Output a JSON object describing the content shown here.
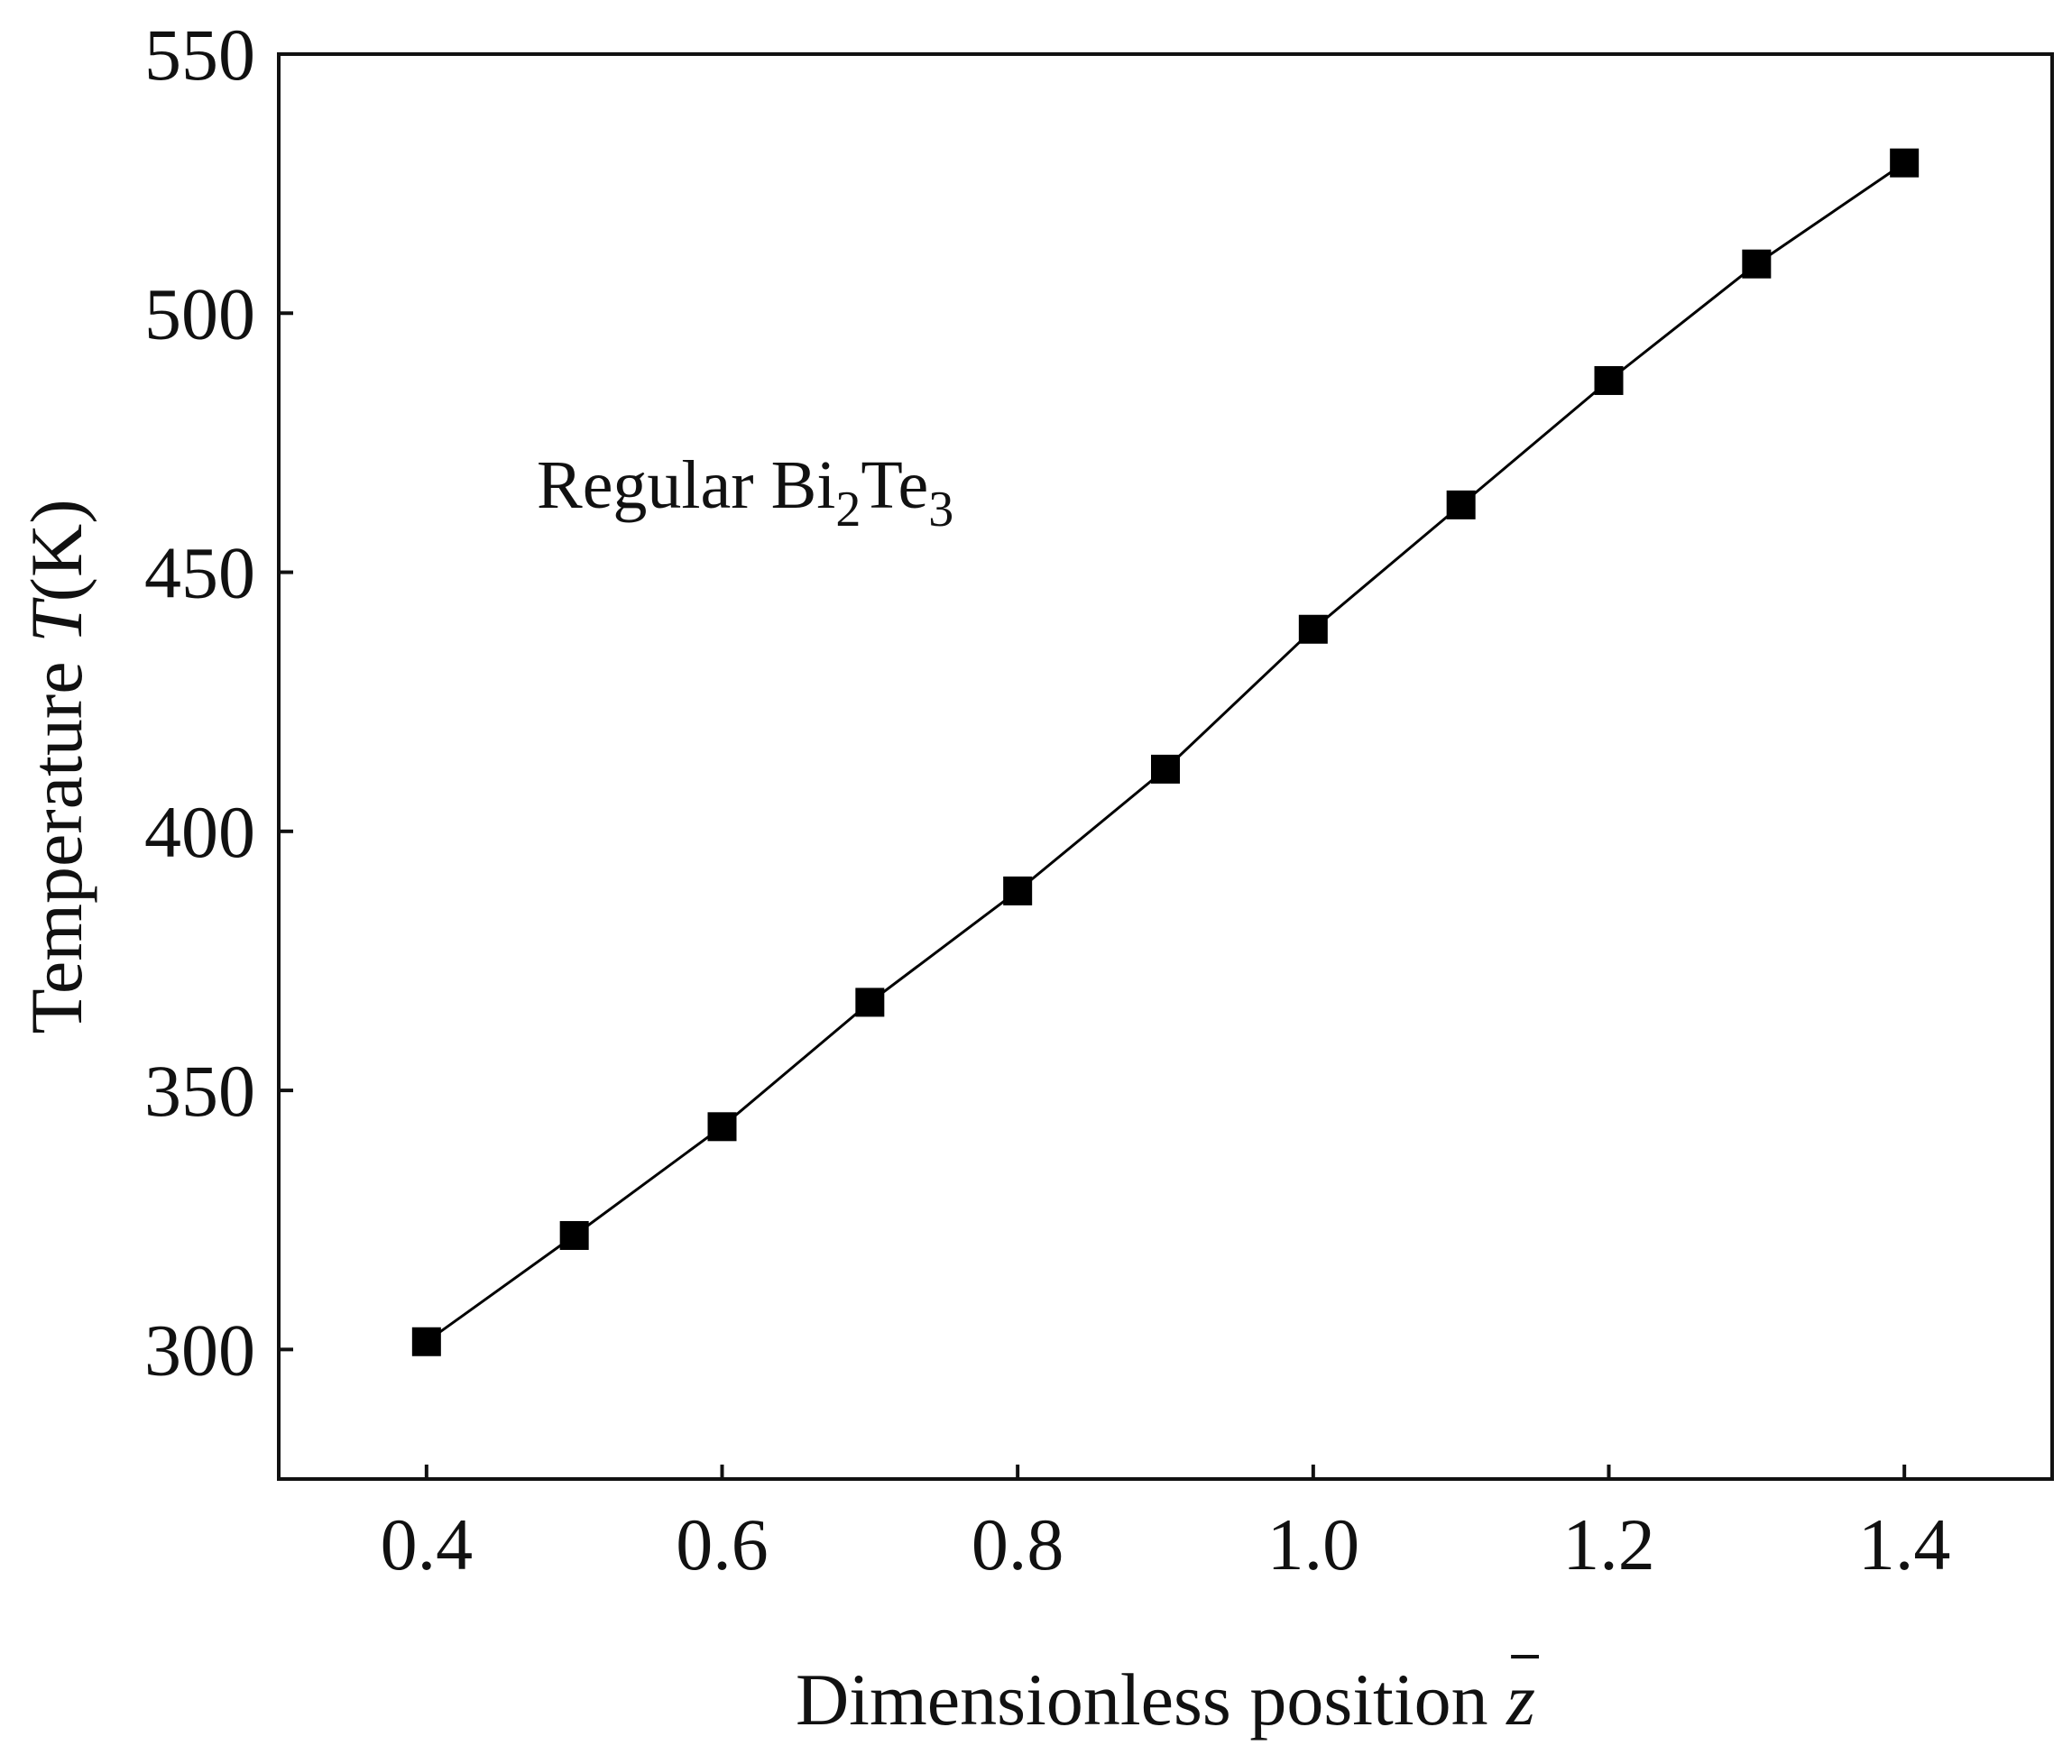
{
  "chart_data": {
    "type": "line",
    "title": "",
    "xlabel": "Dimensionless position",
    "xlabel_symbol": "z",
    "ylabel": "Temperature",
    "ylabel_symbol": "T",
    "ylabel_unit": "(K)",
    "xlim": [
      0.3,
      1.5
    ],
    "ylim": [
      275,
      550
    ],
    "x_ticks": [
      0.4,
      0.6,
      0.8,
      1.0,
      1.2,
      1.4
    ],
    "x_tick_labels": [
      "0.4",
      "0.6",
      "0.8",
      "1.0",
      "1.2",
      "1.4"
    ],
    "y_ticks": [
      300,
      350,
      400,
      450,
      500,
      550
    ],
    "y_tick_labels": [
      "300",
      "350",
      "400",
      "450",
      "500",
      "550"
    ],
    "grid": false,
    "legend": "none",
    "marker": "square",
    "color": "#000000",
    "annotation": {
      "text": "Regular Bi",
      "sub1": "2",
      "mid": "Te",
      "sub2": "3"
    },
    "series": [
      {
        "x": [
          0.4,
          0.5,
          0.6,
          0.7,
          0.8,
          0.9,
          1.0,
          1.1,
          1.2,
          1.3,
          1.4
        ],
        "y": [
          301.5,
          322,
          343,
          367,
          388.5,
          412,
          439,
          463,
          487,
          509.5,
          529
        ]
      }
    ]
  }
}
